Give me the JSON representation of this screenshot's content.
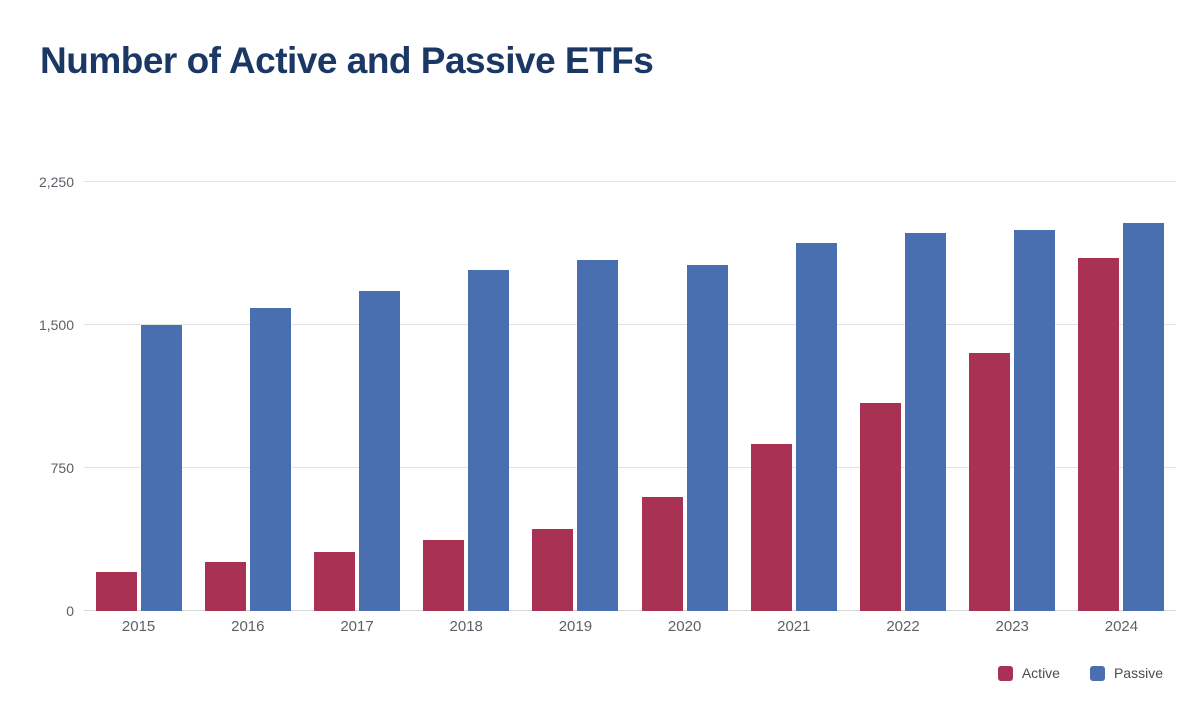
{
  "page": {
    "title": "Number of Active and Passive ETFs"
  },
  "chart_data": {
    "type": "bar",
    "title": "Number of Active and Passive ETFs",
    "categories": [
      "2015",
      "2016",
      "2017",
      "2018",
      "2019",
      "2020",
      "2021",
      "2022",
      "2023",
      "2024"
    ],
    "series": [
      {
        "name": "Active",
        "color": "#a93154",
        "values": [
          205,
          255,
          310,
          370,
          430,
          600,
          875,
          1090,
          1355,
          1850
        ]
      },
      {
        "name": "Passive",
        "color": "#4a6fb1",
        "values": [
          1500,
          1590,
          1680,
          1790,
          1840,
          1815,
          1930,
          1980,
          2000,
          2035
        ]
      }
    ],
    "xlabel": "",
    "ylabel": "",
    "ylim": [
      0,
      2250
    ],
    "yticks": [
      {
        "value": 0,
        "label": "0"
      },
      {
        "value": 750,
        "label": "750"
      },
      {
        "value": 1500,
        "label": "1,500"
      },
      {
        "value": 2250,
        "label": "2,250"
      }
    ],
    "grid": "horizontal",
    "legend_position": "bottom-right",
    "title_color": "#1b3764"
  }
}
